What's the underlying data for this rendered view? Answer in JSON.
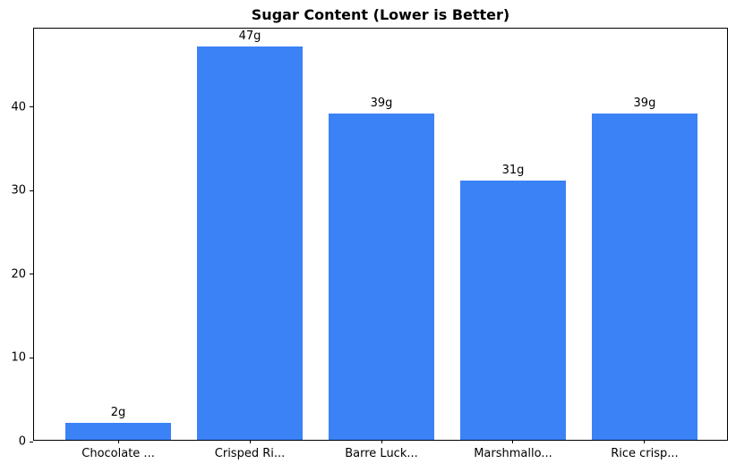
{
  "chart_data": {
    "type": "bar",
    "title": "Sugar Content (Lower is Better)",
    "categories": [
      "Chocolate ...",
      "Crisped Ri...",
      "Barre Luck...",
      "Marshmallo...",
      "Rice crisp..."
    ],
    "values": [
      2,
      47,
      39,
      31,
      39
    ],
    "bar_labels": [
      "2g",
      "47g",
      "39g",
      "31g",
      "39g"
    ],
    "xlabel": "",
    "ylabel": "",
    "ylim": [
      0,
      49.35
    ],
    "yticks": [
      0,
      10,
      20,
      30,
      40
    ],
    "bar_color": "#3b82f6",
    "grid": false,
    "legend_position": "none",
    "bar_width_fraction": 0.8
  }
}
